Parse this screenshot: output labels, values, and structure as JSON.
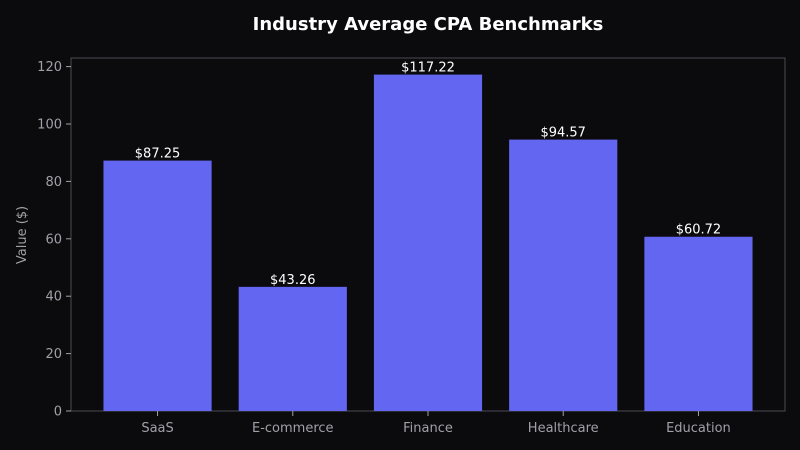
{
  "chart_data": {
    "type": "bar",
    "title": "Industry Average CPA Benchmarks",
    "xlabel": "",
    "ylabel": "Value ($)",
    "categories": [
      "SaaS",
      "E-commerce",
      "Finance",
      "Healthcare",
      "Education"
    ],
    "values": [
      87.25,
      43.26,
      117.22,
      94.57,
      60.72
    ],
    "data_labels": [
      "$87.25",
      "$43.26",
      "$117.22",
      "$94.57",
      "$60.72"
    ],
    "ylim": [
      0,
      123
    ],
    "yticks": [
      0,
      20,
      40,
      60,
      80,
      100,
      120
    ],
    "grid": false,
    "legend": "none",
    "colors": {
      "background": "#0b0b0d",
      "bar": "#6366f1",
      "axis": "#4a4a52",
      "text": "#a0a0a8",
      "title": "#ffffff"
    }
  }
}
